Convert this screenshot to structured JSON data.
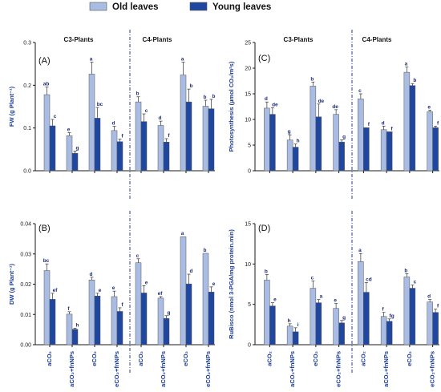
{
  "legend": {
    "old_label": "Old leaves",
    "young_label": "Young leaves"
  },
  "colors": {
    "old": "#a9bce4",
    "young": "#1f47a0",
    "axis": "#1a1a1a",
    "text": "#1a3a9a"
  },
  "chart_data": [
    {
      "type": "bar",
      "panel": "(A)",
      "ylabel": "FW (g Plant⁻¹)",
      "ylim": [
        0,
        0.3
      ],
      "yticks": [
        0.0,
        0.1,
        0.2,
        0.3
      ],
      "yticklabels": [
        "0.0",
        "0.1",
        "0.2",
        "0.3"
      ],
      "groups": [
        {
          "title": "C3-Plants",
          "categories": [
            "aCO2",
            "aCO2+fnNPs",
            "eCO2",
            "eCO2+fnNPs"
          ],
          "series": [
            {
              "name": "Old leaves",
              "values": [
                0.178,
                0.082,
                0.226,
                0.094
              ],
              "errors": [
                0.018,
                0.007,
                0.028,
                0.01
              ],
              "letters": [
                "ab",
                "e",
                "a",
                "d"
              ]
            },
            {
              "name": "Young leaves",
              "values": [
                0.105,
                0.041,
                0.123,
                0.068
              ],
              "errors": [
                0.015,
                0.005,
                0.025,
                0.006
              ],
              "letters": [
                "c",
                "g",
                "bc",
                "f"
              ]
            }
          ]
        },
        {
          "title": "C4-Plants",
          "categories": [
            "aCO2",
            "aCO2+fnNPs",
            "eCO2",
            "eCO2+fnNPs"
          ],
          "series": [
            {
              "name": "Old leaves",
              "values": [
                0.161,
                0.106,
                0.224,
                0.151
              ],
              "errors": [
                0.012,
                0.01,
                0.03,
                0.014
              ],
              "letters": [
                "b",
                "d",
                "a",
                "b"
              ]
            },
            {
              "name": "Young leaves",
              "values": [
                0.115,
                0.067,
                0.161,
                0.145
              ],
              "errors": [
                0.018,
                0.008,
                0.03,
                0.022
              ],
              "letters": [
                "c",
                "f",
                "b",
                "b"
              ]
            }
          ]
        }
      ]
    },
    {
      "type": "bar",
      "panel": "(B)",
      "ylabel": "DW (g Plant⁻¹)",
      "ylim": [
        0,
        0.04
      ],
      "yticks": [
        0.0,
        0.01,
        0.02,
        0.03,
        0.04
      ],
      "yticklabels": [
        "0.00",
        "0.01",
        "0.02",
        "0.03",
        "0.04"
      ],
      "groups": [
        {
          "title": "",
          "categories": [
            "aCO2",
            "aCO2+fnNPs",
            "eCO2",
            "eCO2+fnNPs"
          ],
          "series": [
            {
              "name": "Old leaves",
              "values": [
                0.0245,
                0.0101,
                0.0214,
                0.0159
              ],
              "errors": [
                0.0022,
                0.0008,
                0.0009,
                0.0018
              ],
              "letters": [
                "bc",
                "f",
                "d",
                "e"
              ]
            },
            {
              "name": "Young leaves",
              "values": [
                0.015,
                0.0051,
                0.0161,
                0.011
              ],
              "errors": [
                0.002,
                0.0003,
                0.0009,
                0.0012
              ],
              "letters": [
                "ef",
                "h",
                "e",
                "f"
              ]
            }
          ]
        },
        {
          "title": "",
          "categories": [
            "aCO2",
            "aCO2+fnNPs",
            "eCO2",
            "eCO2+fnNPs"
          ],
          "series": [
            {
              "name": "Old leaves",
              "values": [
                0.0271,
                0.0154,
                0.0357,
                0.0302
              ],
              "errors": [
                0.0013,
                0.0005,
                0.0,
                0.0
              ],
              "letters": [
                "c",
                "ef",
                "a",
                "b"
              ]
            },
            {
              "name": "Young leaves",
              "values": [
                0.0171,
                0.0087,
                0.0201,
                0.0174
              ],
              "errors": [
                0.0024,
                0.0009,
                0.0032,
                0.0017
              ],
              "letters": [
                "e",
                "g",
                "d",
                "e"
              ]
            }
          ]
        }
      ]
    },
    {
      "type": "bar",
      "panel": "(C)",
      "ylabel": "Photosynthesis (µmol CO₂/m²s)",
      "ylim": [
        0,
        25
      ],
      "yticks": [
        0,
        5,
        10,
        15,
        20,
        25
      ],
      "yticklabels": [
        "0",
        "5",
        "10",
        "15",
        "20",
        "25"
      ],
      "groups": [
        {
          "title": "C3-Plants",
          "categories": [
            "aCO2",
            "aCO2+fnNPs",
            "eCO2",
            "eCO2+fnNPs"
          ],
          "series": [
            {
              "name": "Old leaves",
              "values": [
                12.2,
                6.0,
                16.5,
                11.0
              ],
              "errors": [
                1.2,
                1.0,
                0.8,
                0.9
              ],
              "letters": [
                "d",
                "g",
                "b",
                "de"
              ]
            },
            {
              "name": "Young leaves",
              "values": [
                11.0,
                4.6,
                10.5,
                5.6
              ],
              "errors": [
                1.3,
                0.6,
                2.5,
                0.4
              ],
              "letters": [
                "de",
                "h",
                "de",
                "g"
              ]
            }
          ]
        },
        {
          "title": "C4-Plants",
          "categories": [
            "aCO2",
            "aCO2+fnNPs",
            "eCO2",
            "eCO2+fnNPs"
          ],
          "series": [
            {
              "name": "Old leaves",
              "values": [
                14.0,
                8.0,
                19.2,
                11.5
              ],
              "errors": [
                1.0,
                0.7,
                1.0,
                0.3
              ],
              "letters": [
                "c",
                "d",
                "a",
                "e"
              ]
            },
            {
              "name": "Young leaves",
              "values": [
                8.4,
                7.6,
                16.6,
                8.4
              ],
              "errors": [
                0.0,
                0.0,
                0.4,
                0.3
              ],
              "letters": [
                "f",
                "f",
                "b",
                "f"
              ]
            }
          ]
        }
      ]
    },
    {
      "type": "bar",
      "panel": "(D)",
      "ylabel": "RuBisco (nmol 3-PGA/mg protein.min)",
      "ylim": [
        0,
        15
      ],
      "yticks": [
        0,
        5,
        10,
        15
      ],
      "yticklabels": [
        "0",
        "5",
        "10",
        "15"
      ],
      "groups": [
        {
          "title": "",
          "categories": [
            "aCO2",
            "aCO2+fnNPs",
            "eCO2",
            "eCO2+fnNPs"
          ],
          "series": [
            {
              "name": "Old leaves",
              "values": [
                8.0,
                2.3,
                7.0,
                4.5
              ],
              "errors": [
                0.7,
                0.3,
                0.9,
                0.6
              ],
              "letters": [
                "b",
                "h",
                "c",
                "e"
              ]
            },
            {
              "name": "Young leaves",
              "values": [
                4.8,
                1.6,
                5.2,
                2.7
              ],
              "errors": [
                0.4,
                0.5,
                0.4,
                0.3
              ],
              "letters": [
                "e",
                "i",
                "a",
                "g"
              ]
            }
          ]
        },
        {
          "title": "",
          "categories": [
            "aCO2",
            "aCO2+fnNPs",
            "eCO2",
            "eCO2+fnNPs"
          ],
          "series": [
            {
              "name": "Old leaves",
              "values": [
                10.3,
                3.5,
                8.4,
                5.3
              ],
              "errors": [
                1.0,
                0.5,
                0.4,
                0.3
              ],
              "letters": [
                "a",
                "f",
                "b",
                "d"
              ]
            },
            {
              "name": "Young leaves",
              "values": [
                6.5,
                2.9,
                7.0,
                4.0
              ],
              "errors": [
                1.2,
                0.3,
                0.4,
                0.4
              ],
              "letters": [
                "cd",
                "fg",
                "c",
                "f"
              ]
            }
          ]
        }
      ]
    }
  ]
}
